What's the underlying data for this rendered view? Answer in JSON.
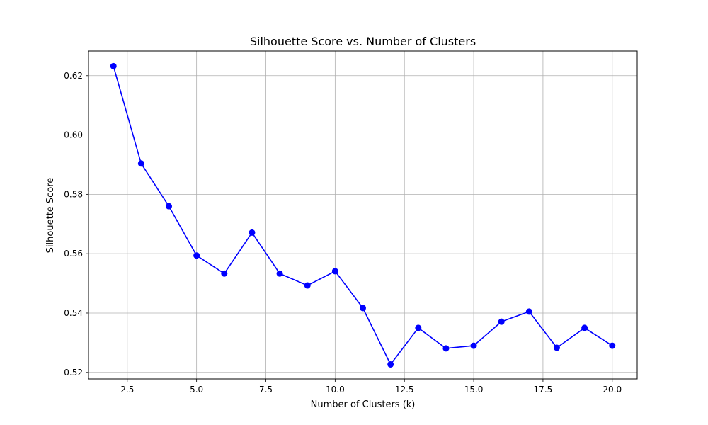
{
  "chart_data": {
    "type": "line",
    "title": "Silhouette Score vs. Number of Clusters",
    "xlabel": "Number of Clusters (k)",
    "ylabel": "Silhouette Score",
    "x": [
      2,
      3,
      4,
      5,
      6,
      7,
      8,
      9,
      10,
      11,
      12,
      13,
      14,
      15,
      16,
      17,
      18,
      19,
      20
    ],
    "series": [
      {
        "values": [
          0.6232,
          0.5904,
          0.576,
          0.5594,
          0.5533,
          0.5671,
          0.5533,
          0.5493,
          0.5541,
          0.5417,
          0.5227,
          0.535,
          0.5281,
          0.529,
          0.5371,
          0.5405,
          0.5283,
          0.535,
          0.529
        ],
        "color": "#0000ff",
        "marker": "circle"
      }
    ],
    "xlim": [
      1.1,
      20.9
    ],
    "ylim": [
      0.5178,
      0.6283
    ],
    "xticks": [
      2.5,
      5.0,
      7.5,
      10.0,
      12.5,
      15.0,
      17.5,
      20.0
    ],
    "xtick_labels": [
      "2.5",
      "5.0",
      "7.5",
      "10.0",
      "12.5",
      "15.0",
      "17.5",
      "20.0"
    ],
    "yticks": [
      0.52,
      0.54,
      0.56,
      0.58,
      0.6,
      0.62
    ],
    "ytick_labels": [
      "0.52",
      "0.54",
      "0.56",
      "0.58",
      "0.60",
      "0.62"
    ],
    "grid": true,
    "legend": false
  }
}
